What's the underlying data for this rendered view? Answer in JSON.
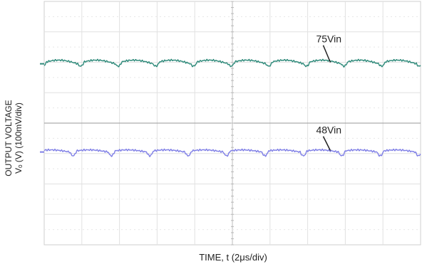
{
  "chart_data": {
    "type": "line",
    "title": "",
    "xlabel": "TIME, t (2μs/div)",
    "ylabel_line1": "OUTPUT VOLTAGE",
    "ylabel_line2": "Vₒ (V) (100mV/div)",
    "x_divisions": 10,
    "y_divisions": 8,
    "grid": true,
    "series": [
      {
        "name": "75Vin",
        "color": "#2e8a7a",
        "baseline_div": 2.05,
        "ripple_period_div": 1.0,
        "ripple_amplitude_mV": 12,
        "spike_amplitude_mV": 11,
        "annotation": "75Vin"
      },
      {
        "name": "48Vin",
        "color": "#7f7fe6",
        "baseline_div": 4.95,
        "ripple_period_div": 1.02,
        "ripple_amplitude_mV": 7,
        "spike_amplitude_mV": 13,
        "annotation": "48Vin"
      }
    ],
    "x": {
      "range_us": [
        0,
        20
      ],
      "unit": "μs"
    },
    "y": {
      "scale_mV_per_div": 100
    }
  }
}
